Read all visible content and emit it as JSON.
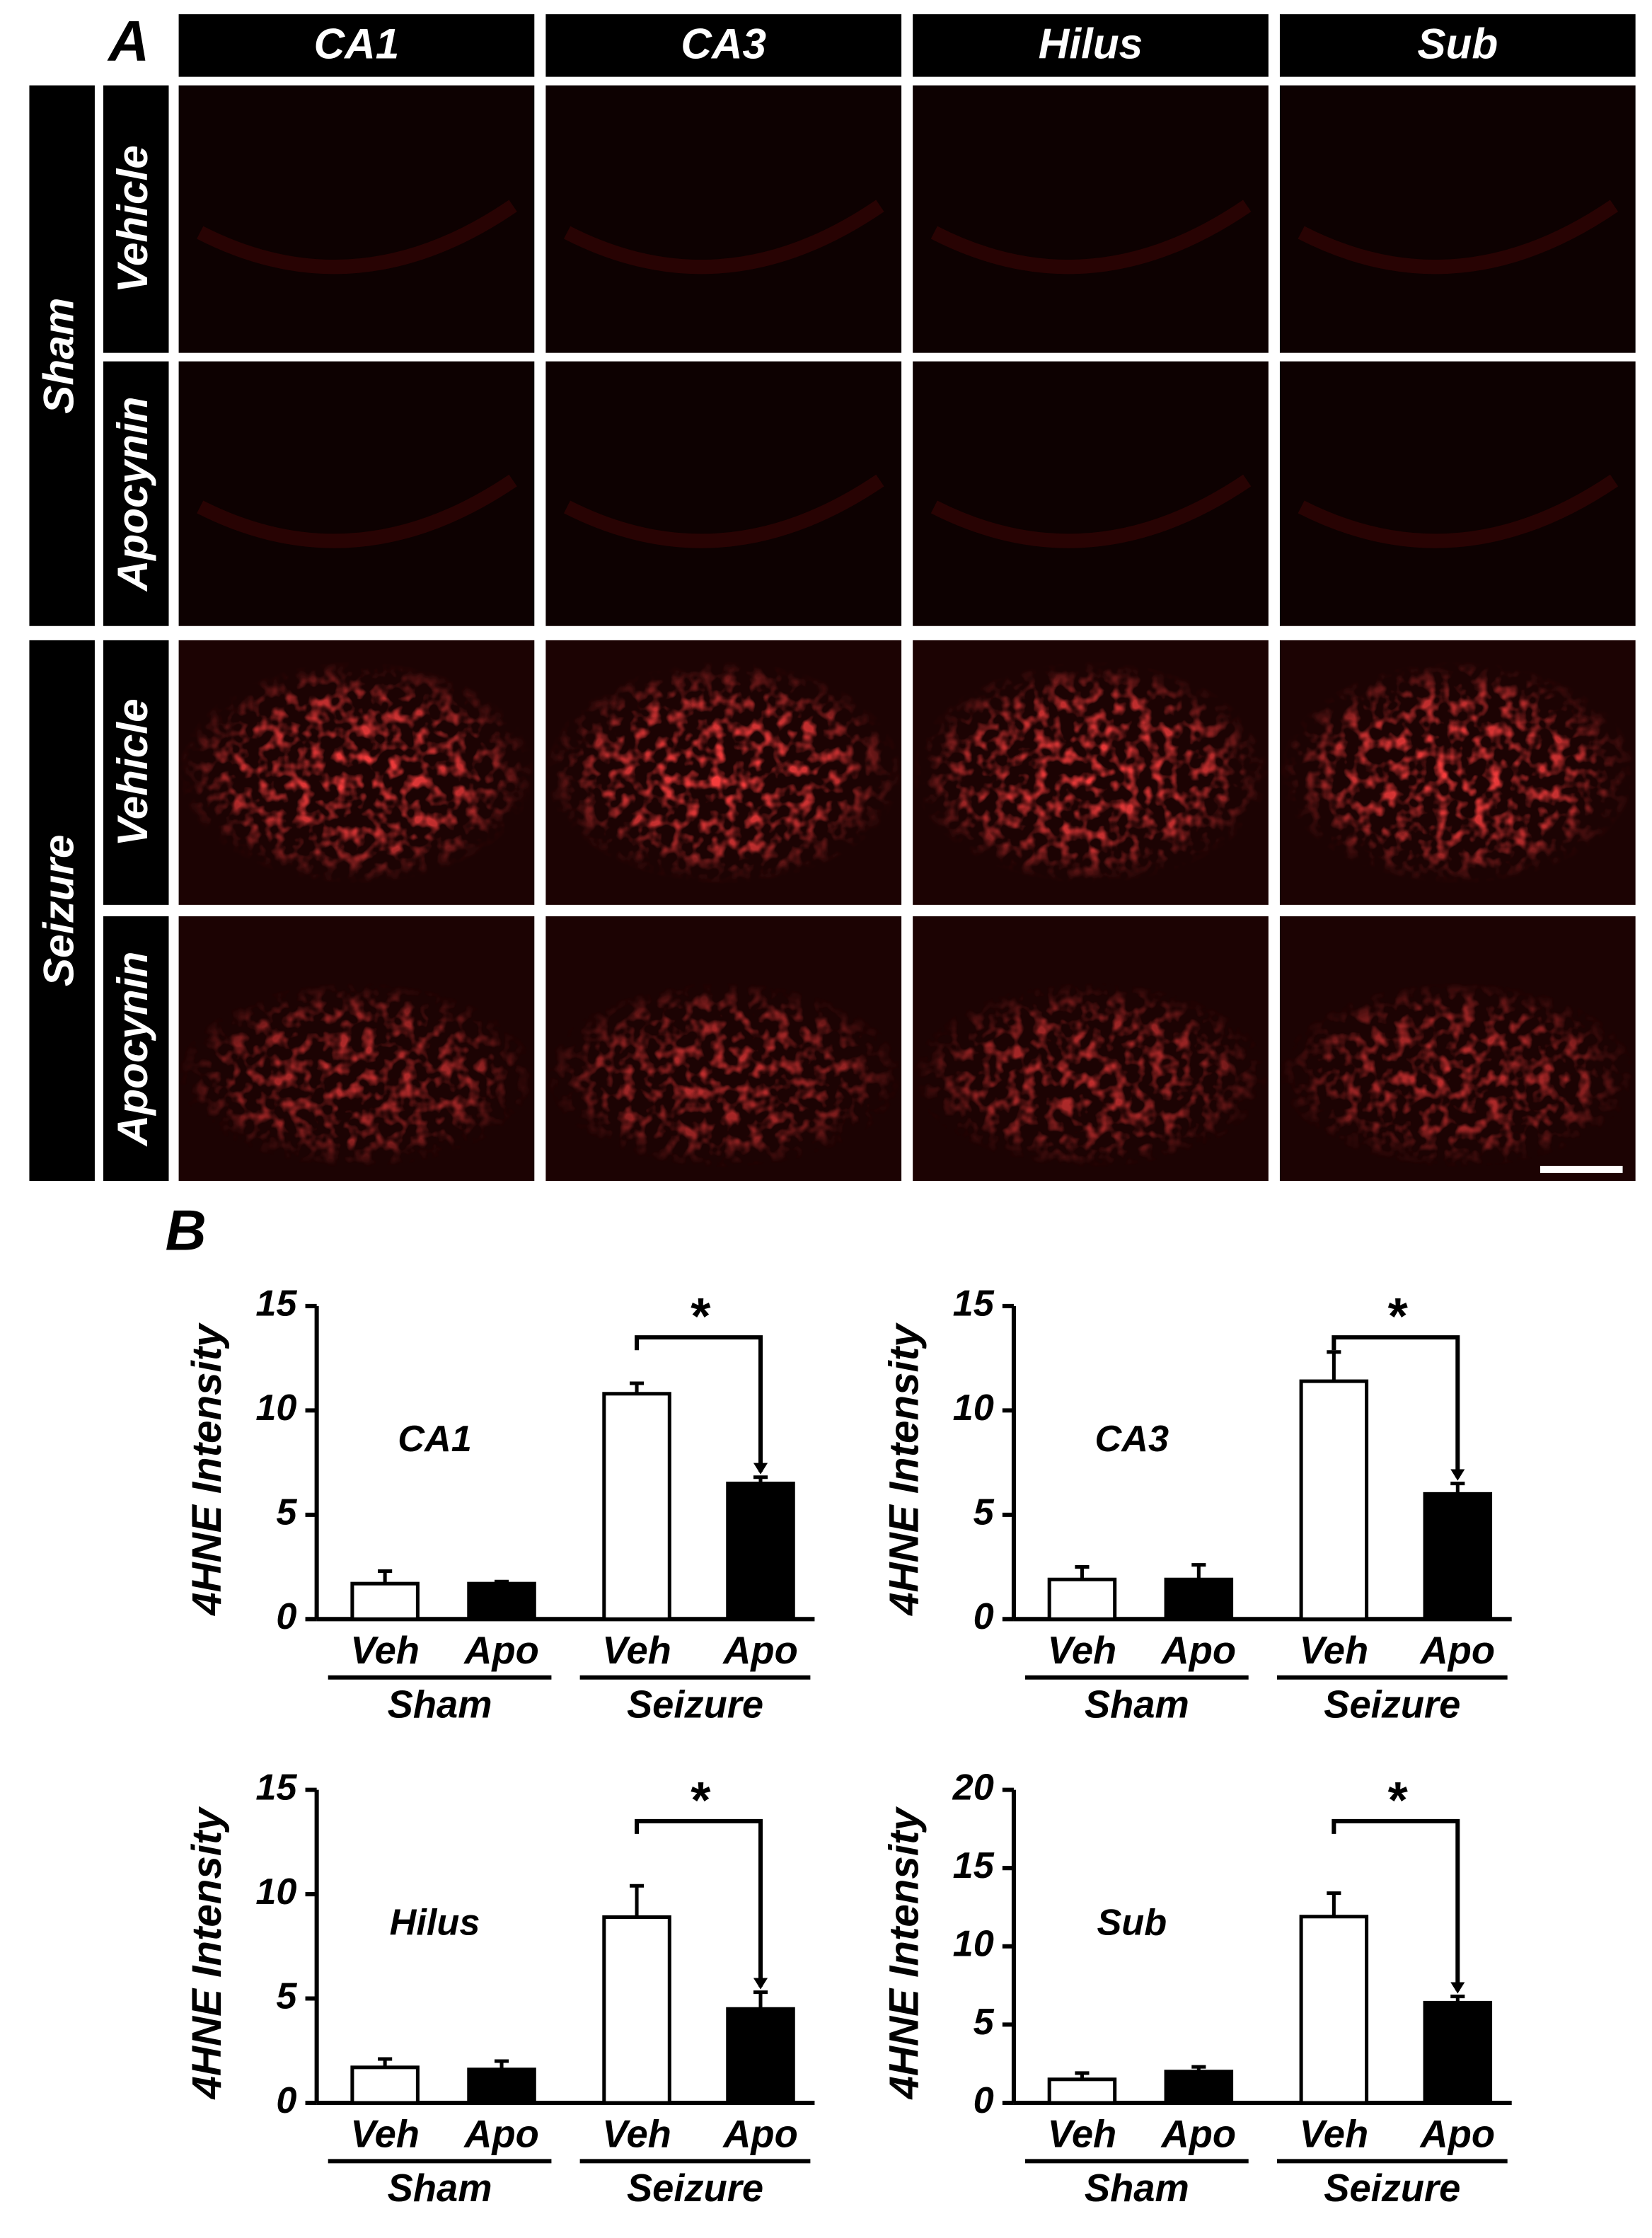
{
  "panel_a": {
    "label": "A",
    "columns": [
      "CA1",
      "CA3",
      "Hilus",
      "Sub"
    ],
    "groups": [
      {
        "name": "Sham",
        "rows": [
          "Vehicle",
          "Apocynin"
        ]
      },
      {
        "name": "Seizure",
        "rows": [
          "Vehicle",
          "Apocynin"
        ]
      }
    ]
  },
  "panel_b": {
    "label": "B"
  },
  "chart_data": [
    {
      "type": "bar",
      "title": "CA1",
      "ylabel": "4HNE Intensity",
      "categories": [
        "Veh",
        "Apo",
        "Veh",
        "Apo"
      ],
      "groups": [
        "Sham",
        "Seizure"
      ],
      "values": [
        1.7,
        1.7,
        10.8,
        6.5
      ],
      "errors": [
        0.6,
        0.1,
        0.5,
        0.3
      ],
      "colors": [
        "#ffffff",
        "#000000",
        "#ffffff",
        "#000000"
      ],
      "ylim": [
        0,
        15
      ],
      "yticks": [
        0,
        5,
        10,
        15
      ],
      "significance": "*"
    },
    {
      "type": "bar",
      "title": "CA3",
      "ylabel": "4HNE Intensity",
      "categories": [
        "Veh",
        "Apo",
        "Veh",
        "Apo"
      ],
      "groups": [
        "Sham",
        "Seizure"
      ],
      "values": [
        1.9,
        1.9,
        11.4,
        6.0
      ],
      "errors": [
        0.6,
        0.7,
        1.4,
        0.5
      ],
      "colors": [
        "#ffffff",
        "#000000",
        "#ffffff",
        "#000000"
      ],
      "ylim": [
        0,
        15
      ],
      "yticks": [
        0,
        5,
        10,
        15
      ],
      "significance": "*"
    },
    {
      "type": "bar",
      "title": "Hilus",
      "ylabel": "4HNE Intensity",
      "categories": [
        "Veh",
        "Apo",
        "Veh",
        "Apo"
      ],
      "groups": [
        "Sham",
        "Seizure"
      ],
      "values": [
        1.7,
        1.6,
        8.9,
        4.5
      ],
      "errors": [
        0.4,
        0.4,
        1.5,
        0.8
      ],
      "colors": [
        "#ffffff",
        "#000000",
        "#ffffff",
        "#000000"
      ],
      "ylim": [
        0,
        15
      ],
      "yticks": [
        0,
        5,
        10,
        15
      ],
      "significance": "*"
    },
    {
      "type": "bar",
      "title": "Sub",
      "ylabel": "4HNE Intensity",
      "categories": [
        "Veh",
        "Apo",
        "Veh",
        "Apo"
      ],
      "groups": [
        "Sham",
        "Seizure"
      ],
      "values": [
        1.5,
        2.0,
        11.9,
        6.4
      ],
      "errors": [
        0.4,
        0.3,
        1.5,
        0.4
      ],
      "colors": [
        "#ffffff",
        "#000000",
        "#ffffff",
        "#000000"
      ],
      "ylim": [
        0,
        20
      ],
      "yticks": [
        0,
        5,
        10,
        15,
        20
      ],
      "significance": "*"
    }
  ]
}
